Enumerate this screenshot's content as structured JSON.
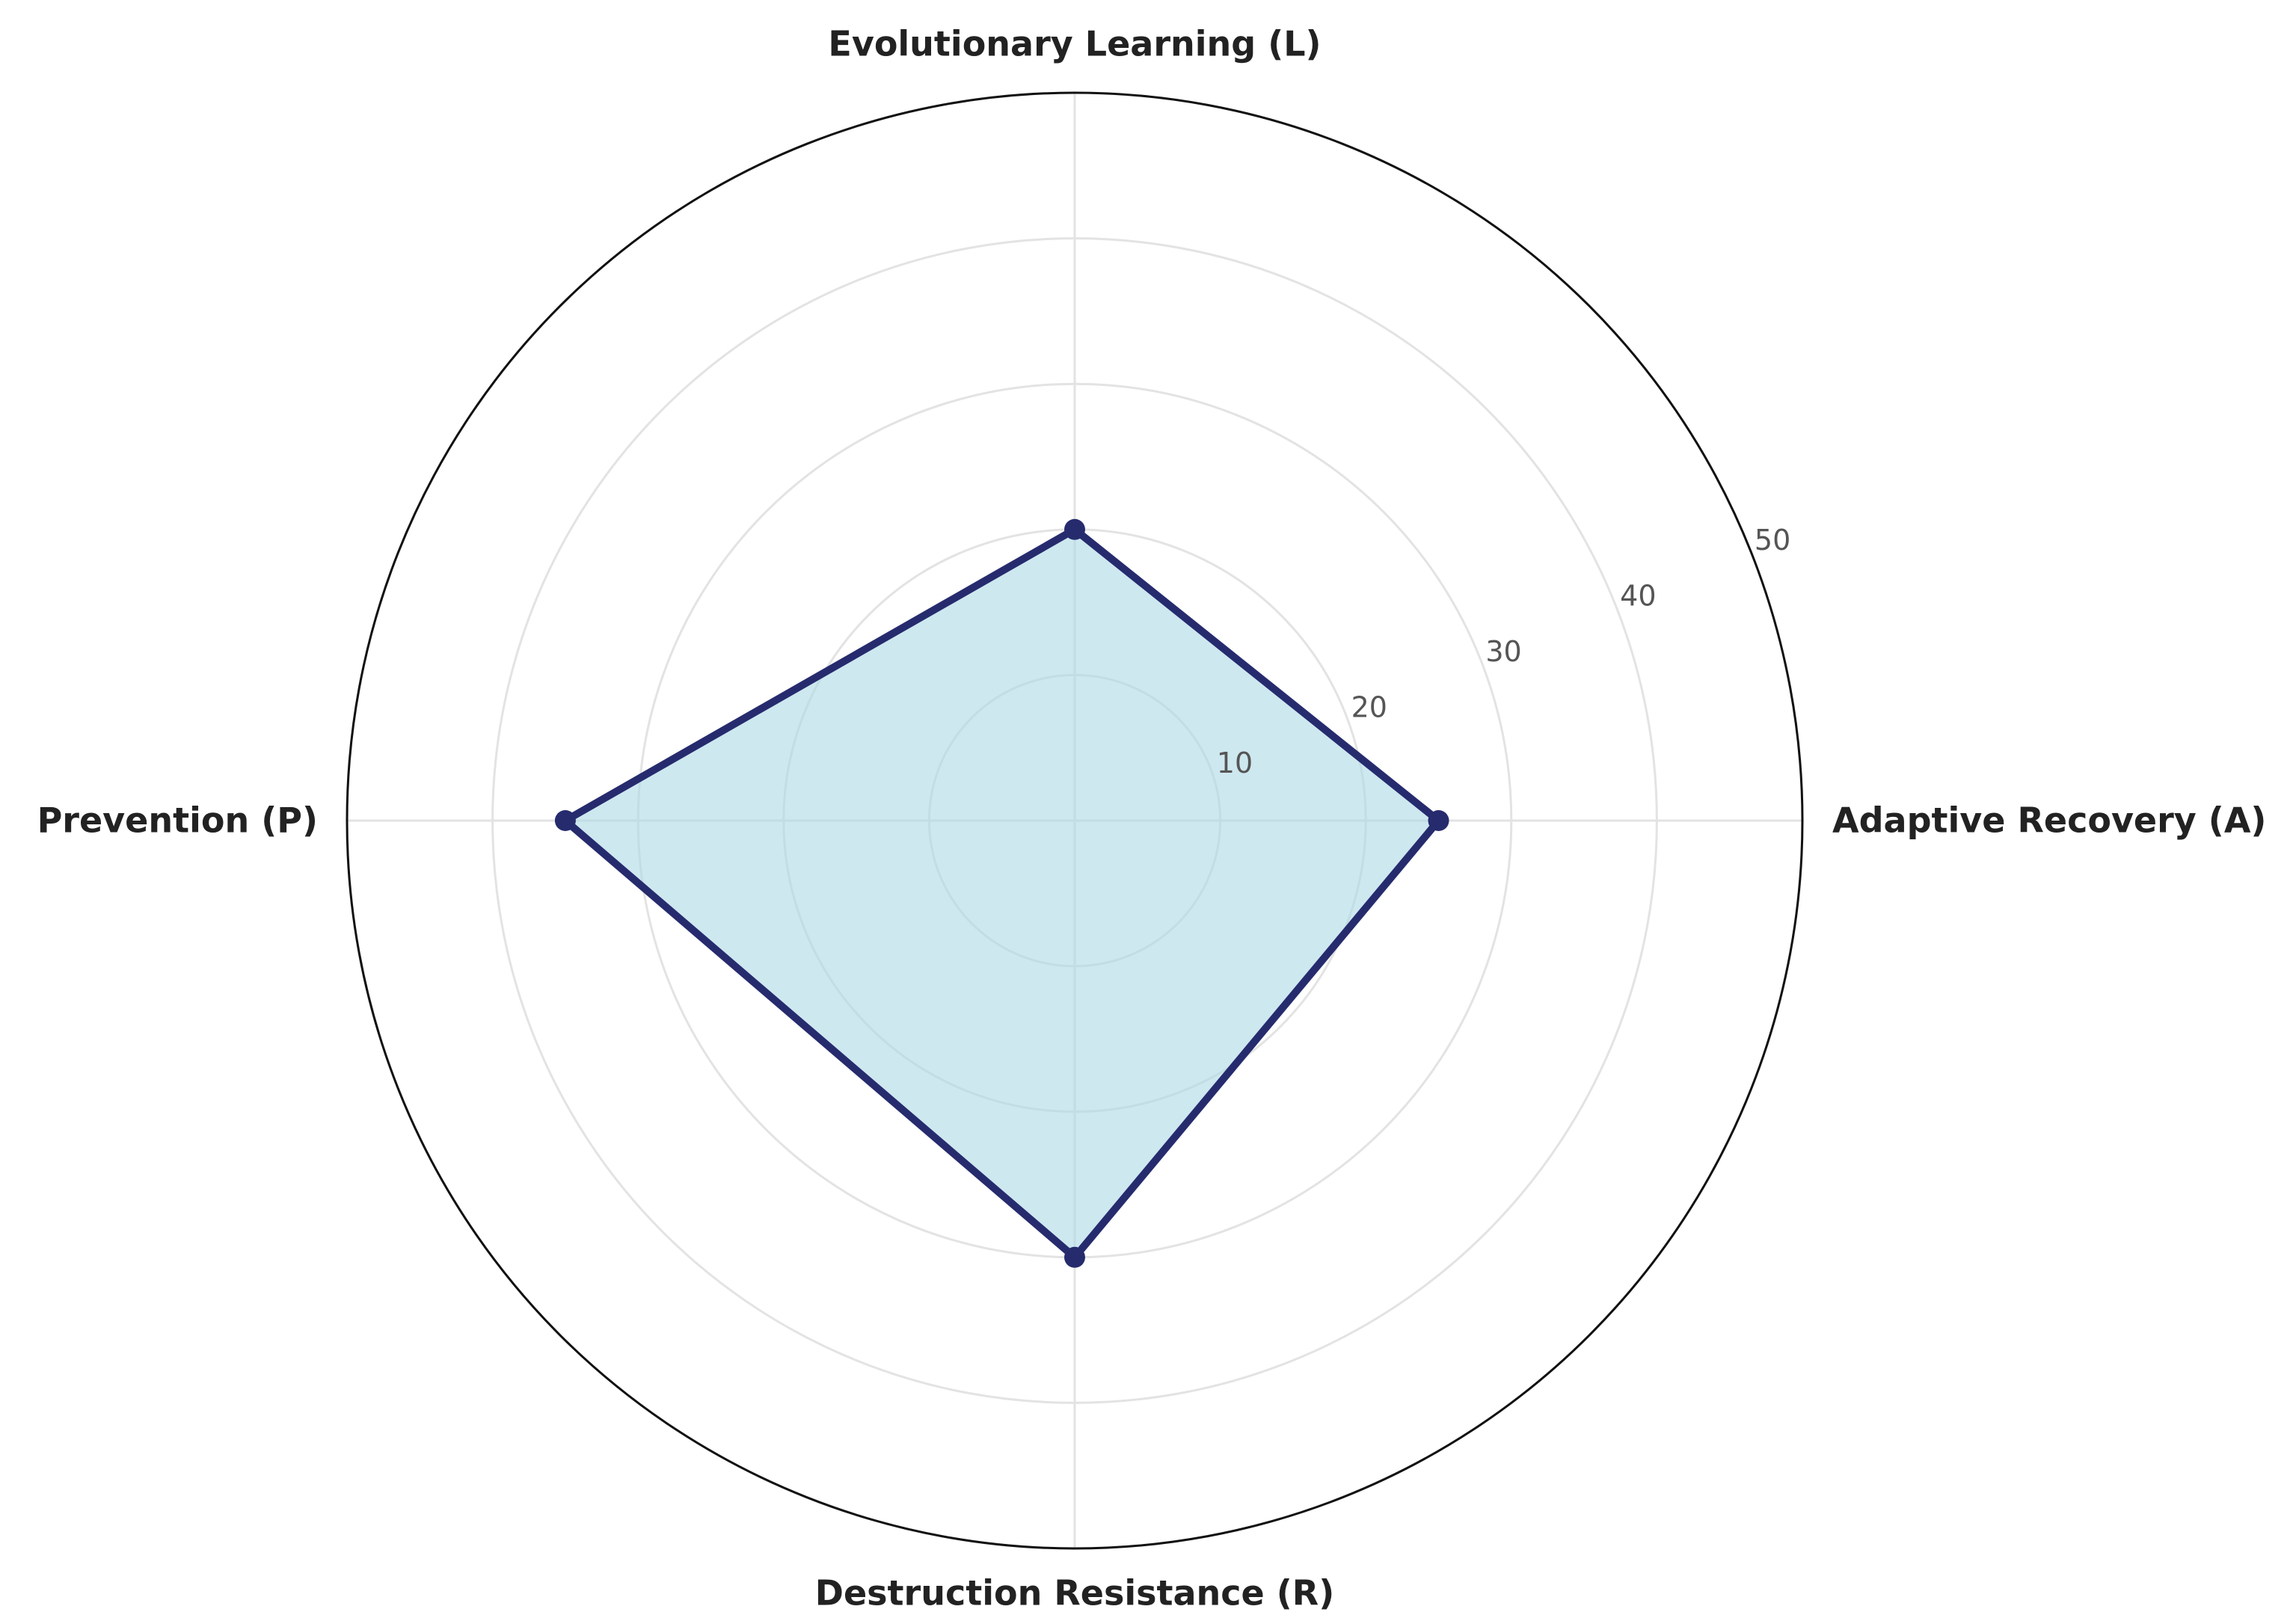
{
  "chart_data": {
    "type": "radar",
    "title": "",
    "axes": [
      "Adaptive Recovery (A)",
      "Evolutionary Learning (L)",
      "Prevention (P)",
      "Destruction Resistance (R)"
    ],
    "series": [
      {
        "values": [
          25,
          20,
          35,
          30
        ]
      }
    ],
    "rlim": [
      0,
      50
    ],
    "rticks": [
      10,
      20,
      30,
      40,
      50
    ],
    "rtick_labels": [
      "10",
      "20",
      "30",
      "40",
      "50"
    ],
    "grid": true,
    "colors": {
      "line": "#262b6e",
      "fill": "#add8e6",
      "fill_opacity": 0.6,
      "grid": "#e3e3e3",
      "outer_ring": "#111111",
      "label": "#222222",
      "tick": "#555555"
    }
  }
}
